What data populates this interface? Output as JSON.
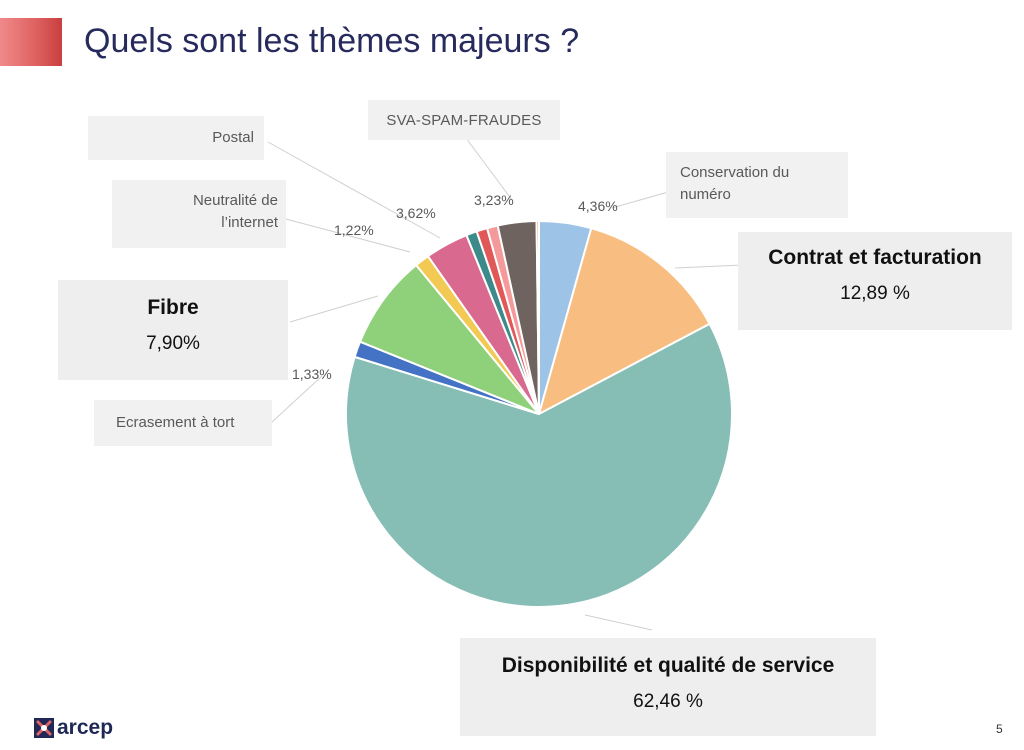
{
  "slide": {
    "title": "Quels sont les thèmes majeurs ?",
    "page_number": "5",
    "logo_text": "arcep",
    "accent_color": "#e06363",
    "title_color": "#262a5c"
  },
  "chart_data": {
    "type": "pie",
    "title": "",
    "slices": [
      {
        "label": "Conservation du numéro",
        "value_label": "4,36%",
        "value": 4.36,
        "color": "#9dc3e6"
      },
      {
        "label": "Contrat et facturation",
        "value_label": "12,89 %",
        "value": 12.89,
        "color": "#f8bd80"
      },
      {
        "label": "Disponibilité et qualité de service",
        "value_label": "62,46 %",
        "value": 62.46,
        "color": "#86bdb4"
      },
      {
        "label": "Ecrasement à tort",
        "value_label": "1,33%",
        "value": 1.33,
        "color": "#4472c4"
      },
      {
        "label": "Fibre",
        "value_label": "7,90%",
        "value": 7.9,
        "color": "#8fd07a"
      },
      {
        "label": "Neutralité de l’internet",
        "value_label": "1,22%",
        "value": 1.22,
        "color": "#f2c952"
      },
      {
        "label": "Postal",
        "value_label": "3,62%",
        "value": 3.62,
        "color": "#d9698f"
      },
      {
        "label": "",
        "value_label": "",
        "value": 0.9,
        "color": "#3d8a8a"
      },
      {
        "label": "",
        "value_label": "",
        "value": 0.9,
        "color": "#e05858"
      },
      {
        "label": "",
        "value_label": "",
        "value": 0.9,
        "color": "#f59a9a"
      },
      {
        "label": "SVA-SPAM-FRAUDES",
        "value_label": "3,23%",
        "value": 3.23,
        "color": "#6f6360"
      },
      {
        "label": "",
        "value_label": "",
        "value": 0.2,
        "color": "#e07a3a"
      }
    ]
  }
}
